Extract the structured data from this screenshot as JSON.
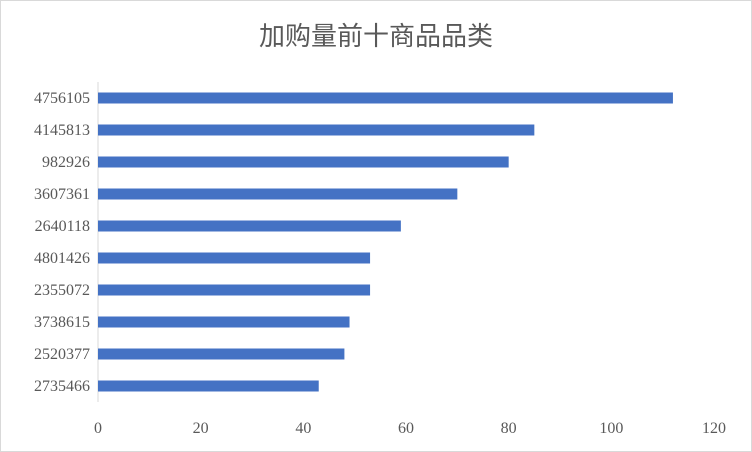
{
  "chart_data": {
    "type": "bar",
    "orientation": "horizontal",
    "title": "加购量前十商品品类",
    "xlabel": "",
    "ylabel": "",
    "categories": [
      "4756105",
      "4145813",
      "982926",
      "3607361",
      "2640118",
      "4801426",
      "2355072",
      "3738615",
      "2520377",
      "2735466"
    ],
    "values": [
      112,
      85,
      80,
      70,
      59,
      53,
      53,
      49,
      48,
      43
    ],
    "xlim": [
      0,
      120
    ],
    "xticks": [
      0,
      20,
      40,
      60,
      80,
      100,
      120
    ],
    "grid": false,
    "bar_color": "#4472c4"
  }
}
